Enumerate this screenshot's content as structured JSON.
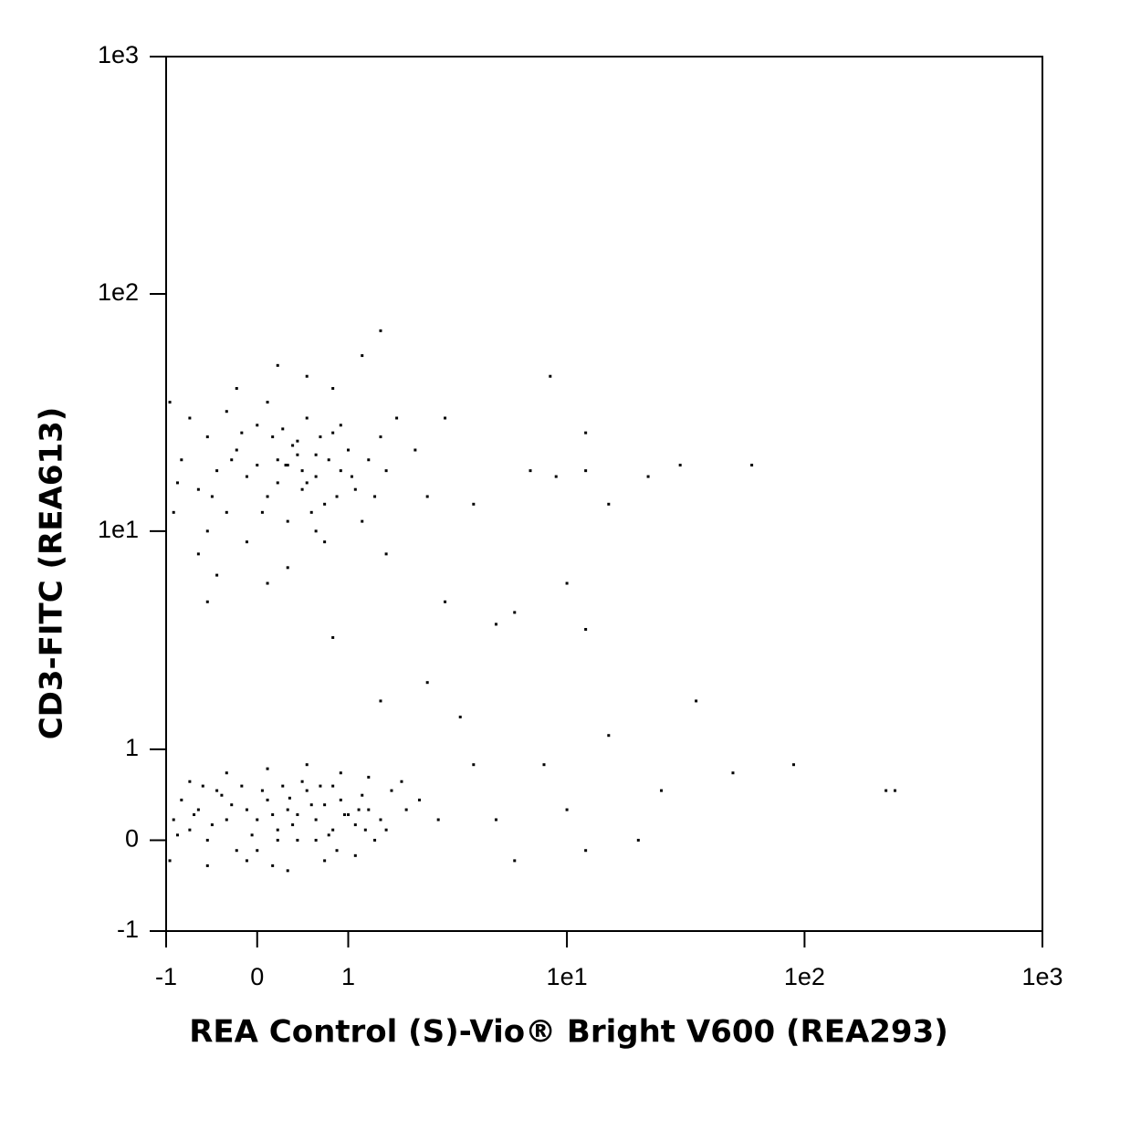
{
  "chart_data": {
    "type": "scatter",
    "xlabel": "REA Control (S)-Vio® Bright V600 (REA293)",
    "ylabel": "CD3-FITC (REA613)",
    "xscale": "biexponential",
    "yscale": "biexponential",
    "color": "#000000",
    "xlim": [
      -1,
      1000
    ],
    "ylim": [
      -1,
      1000
    ],
    "xticks": [
      -1,
      0,
      1,
      {
        "value": 10,
        "label": "1e1"
      },
      {
        "value": 100,
        "label": "1e2"
      },
      {
        "value": 1000,
        "label": "1e3"
      }
    ],
    "yticks": [
      -1,
      0,
      1,
      {
        "value": 10,
        "label": "1e1"
      },
      {
        "value": 100,
        "label": "1e2"
      },
      {
        "value": 1000,
        "label": "1e3"
      }
    ],
    "x": [
      -0.8,
      -0.6,
      -0.5,
      -0.4,
      -0.3,
      -0.2,
      -0.1,
      0,
      0.1,
      0.2,
      0.3,
      0.4,
      0.5,
      0.6,
      0.7,
      0.8,
      0.9,
      1.0,
      1.1,
      1.3,
      1.5,
      1.8,
      -0.9,
      -0.7,
      -0.5,
      -0.3,
      -0.1,
      0.1,
      0.3,
      0.5,
      0.7,
      0.9,
      1.2,
      1.4,
      -0.95,
      -0.6,
      0.0,
      0.2,
      0.4,
      0.6,
      0.35,
      0.15,
      -0.25,
      0.55,
      0.75,
      -0.45,
      0.05,
      0.25,
      0.45,
      0.65,
      1.05,
      1.6,
      -0.85,
      -0.15,
      0.85,
      2.2,
      3,
      0.3,
      0.1,
      -0.4,
      0.5,
      0.2,
      1.2,
      0.8,
      -0.2,
      1.6,
      2.5,
      0.6,
      0.45,
      0.28,
      -0.9,
      -0.8,
      -0.7,
      -0.6,
      -0.5,
      -0.4,
      -0.3,
      -0.2,
      -0.1,
      0,
      0.1,
      0.2,
      0.3,
      0.4,
      0.5,
      0.6,
      0.7,
      0.8,
      0.9,
      1.0,
      1.1,
      1.2,
      1.3,
      1.5,
      1.7,
      2.0,
      -0.95,
      -0.7,
      -0.5,
      -0.3,
      -0.1,
      0.1,
      0.3,
      0.5,
      0.7,
      0.9,
      1.1,
      1.3,
      -0.85,
      -0.65,
      -0.45,
      -0.25,
      -0.05,
      0.15,
      0.35,
      0.55,
      0.75,
      0.95,
      1.15,
      0.05,
      0.25,
      0.45,
      0.65,
      -0.15,
      -0.35,
      0.2,
      0.4,
      0.6,
      0.0,
      0.8,
      1.4,
      1.6,
      1.9,
      2.3,
      2.8,
      0.15,
      -0.55,
      0.85,
      1.25,
      0.32,
      3.5,
      4,
      5,
      6,
      8,
      10,
      12,
      15,
      20,
      25,
      35,
      50,
      90,
      220,
      240,
      8.5,
      12,
      22,
      30,
      60,
      12,
      15,
      10,
      12,
      5,
      3,
      2.5,
      1.5,
      0.8,
      -0.5,
      4,
      7,
      1.5,
      6,
      9
    ],
    "values": [
      20,
      15,
      25,
      18,
      12,
      22,
      17,
      28,
      14,
      20,
      19,
      24,
      16,
      21,
      13,
      26,
      18,
      22,
      15,
      20,
      25,
      30,
      12,
      30,
      10,
      32,
      9,
      35,
      11,
      30,
      9,
      28,
      11,
      14,
      35,
      8,
      19,
      16,
      21,
      17,
      23,
      25,
      20,
      12,
      20,
      14,
      12,
      27,
      15,
      25,
      17,
      18,
      16,
      26,
      14,
      22,
      30,
      7,
      6,
      6.5,
      45,
      50,
      55,
      40,
      40,
      8,
      14,
      10,
      18,
      19,
      0.2,
      0.4,
      0.1,
      0.3,
      0.0,
      0.5,
      0.2,
      -0.1,
      0.3,
      0.2,
      0.4,
      0.1,
      0.3,
      0.0,
      0.5,
      0.2,
      0.35,
      0.1,
      0.4,
      0.25,
      0.15,
      0.45,
      0.3,
      0.2,
      0.5,
      0.3,
      -0.2,
      0.6,
      -0.25,
      0.7,
      -0.2,
      0.75,
      -0.3,
      0.8,
      -0.2,
      0.7,
      -0.15,
      0.65,
      0.05,
      0.25,
      0.15,
      0.35,
      0.05,
      0.25,
      0.15,
      0.35,
      0.05,
      0.25,
      0.3,
      0.5,
      0.55,
      0.6,
      0.55,
      0.55,
      0.45,
      0.0,
      0.25,
      0.0,
      -0.1,
      0.55,
      0.0,
      0.1,
      0.6,
      0.4,
      0.2,
      -0.25,
      0.55,
      -0.1,
      0.1,
      0.42,
      1.5,
      0.8,
      0.2,
      -0.2,
      0.8,
      0.3,
      -0.1,
      1.2,
      0,
      0.5,
      1.8,
      0.7,
      0.8,
      0.5,
      0.5,
      45,
      26,
      17,
      19,
      19,
      18,
      13,
      6,
      3.8,
      4,
      5,
      2.2,
      1.8,
      3.5,
      5,
      13,
      18,
      70,
      4.5,
      17
    ]
  }
}
